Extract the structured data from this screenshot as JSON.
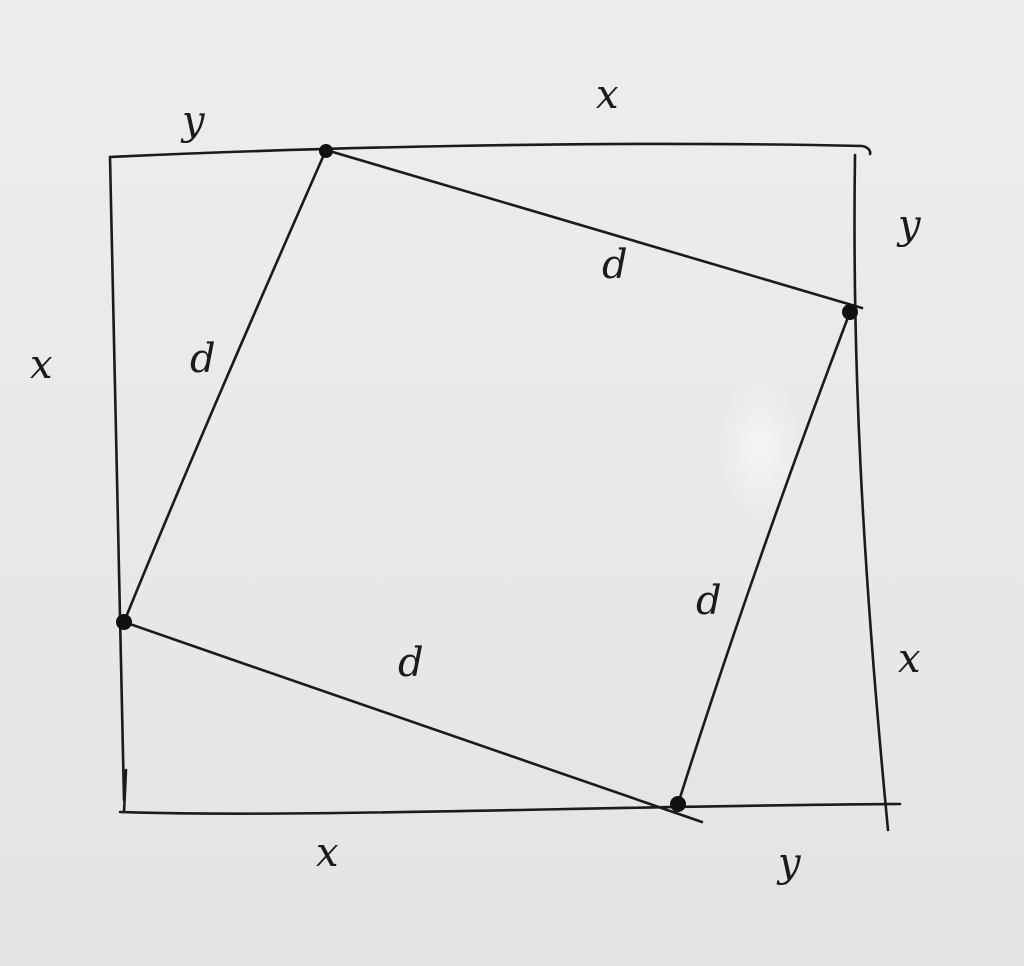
{
  "labels": {
    "top_left_y": "y",
    "top_right_x": "x",
    "right_upper_y": "y",
    "left_x": "x",
    "right_lower_x": "x",
    "bottom_x": "x",
    "bottom_right_y": "y",
    "d_top": "d",
    "d_left": "d",
    "d_bottom": "d",
    "d_right": "d"
  },
  "colors": {
    "ink": "#1b1b1b",
    "paper": "#ecebea"
  }
}
